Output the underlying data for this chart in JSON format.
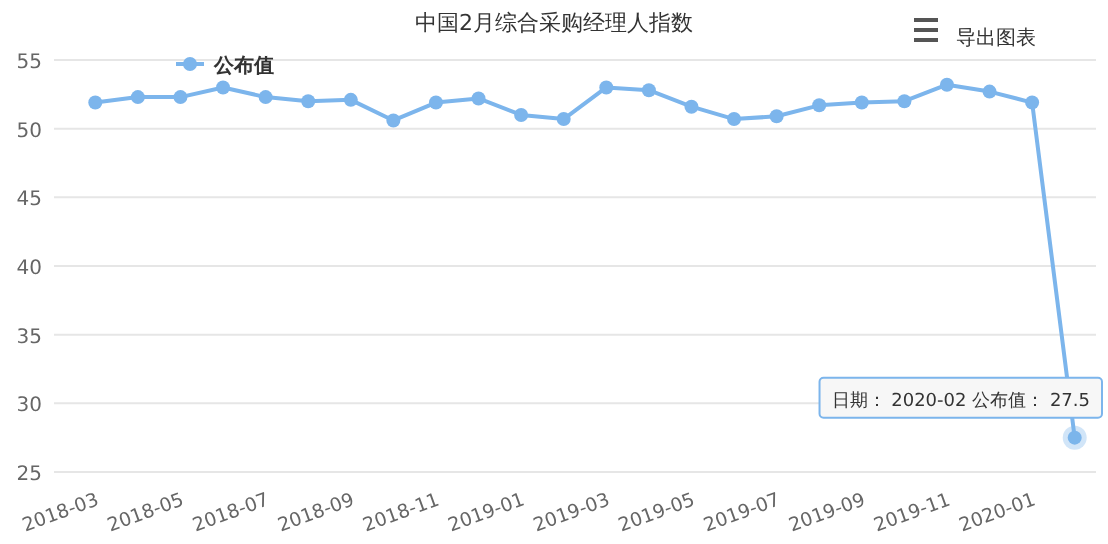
{
  "chart_data": {
    "type": "line",
    "title": "中国2月综合采购经理人指数",
    "categories": [
      "2018-03",
      null,
      "2018-05",
      null,
      "2018-07",
      null,
      "2018-09",
      null,
      "2018-11",
      null,
      "2019-01",
      null,
      "2019-03",
      null,
      "2019-05",
      null,
      "2019-07",
      null,
      "2019-09",
      null,
      "2019-11",
      null,
      "2020-01",
      null
    ],
    "series": [
      {
        "name": "公布值",
        "color": "#7cb5ec",
        "values": [
          51.9,
          52.3,
          52.3,
          53.0,
          52.3,
          52.0,
          52.1,
          50.6,
          51.9,
          52.2,
          51.0,
          50.7,
          53.0,
          52.8,
          51.6,
          50.7,
          50.9,
          51.7,
          51.9,
          52.0,
          53.2,
          52.7,
          51.9,
          27.5
        ]
      }
    ],
    "ylim": [
      25,
      55
    ],
    "yticks": [
      25,
      30,
      35,
      40,
      45,
      50,
      55
    ],
    "grid": "y",
    "legend": "top left",
    "marker": "circle",
    "annotations": [
      "日期： 2020-02 公布值： 27.5",
      "导出图表"
    ]
  }
}
